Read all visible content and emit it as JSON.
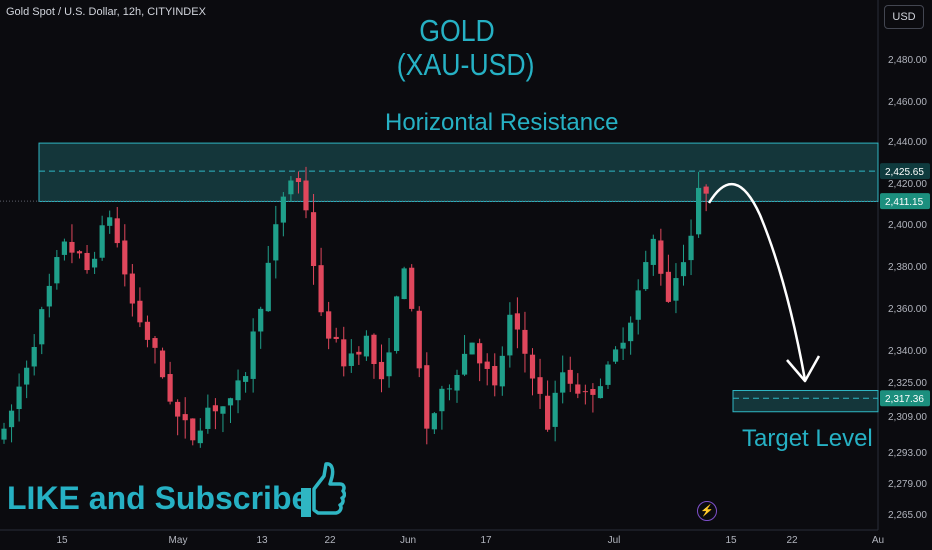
{
  "symbol_title": "Gold Spot / U.S. Dollar, 12h, CITYINDEX",
  "currency_button": "USD",
  "annotations": {
    "title_line1": "GOLD",
    "title_line2": "(XAU-USD)",
    "resistance_label": "Horizontal Resistance",
    "target_label": "Target Level",
    "cta_text": "LIKE and Subscribe"
  },
  "icons": {
    "thumbs_up": "thumbs-up-icon",
    "lightning": "lightning-icon"
  },
  "colors": {
    "background": "#0b0b0f",
    "bull": "#1f9f8a",
    "bear": "#e0475c",
    "zone_fill": "#1f6a6f",
    "zone_border": "#2fb6c3",
    "annotation_text": "#26b1c4",
    "arrow": "#ffffff",
    "price_tag": "#1c8f7e"
  },
  "chart_data": {
    "type": "candlestick",
    "title": "Gold Spot / U.S. Dollar, 12h, CITYINDEX",
    "y_ticks": [
      "2,480.00",
      "2,460.00",
      "2,440.00",
      "2,420.00",
      "2,400.00",
      "2,380.00",
      "2,360.00",
      "2,340.00",
      "2,325.00",
      "2,309.00",
      "2,293.00",
      "2,279.00",
      "2,265.00"
    ],
    "x_ticks": [
      "15",
      "May",
      "13",
      "22",
      "Jun",
      "17",
      "Jul",
      "15",
      "22",
      "Au"
    ],
    "price_tags": [
      {
        "label": "2,425.65",
        "value": 2425.65
      },
      {
        "label": "2,411.15",
        "value": 2411.15
      },
      {
        "label": "2,317.36",
        "value": 2317.36
      }
    ],
    "resistance_zone": [
      2411,
      2439
    ],
    "target_zone": [
      2311,
      2321
    ],
    "target_level": 2317.36,
    "last_price": 2411.15,
    "waypoints": [
      {
        "day": 0,
        "price": 2300
      },
      {
        "day": 4,
        "price": 2345
      },
      {
        "day": 8,
        "price": 2393
      },
      {
        "day": 11,
        "price": 2378
      },
      {
        "day": 14,
        "price": 2405
      },
      {
        "day": 17,
        "price": 2362
      },
      {
        "day": 20,
        "price": 2338
      },
      {
        "day": 23,
        "price": 2308
      },
      {
        "day": 25,
        "price": 2300
      },
      {
        "day": 27,
        "price": 2313
      },
      {
        "day": 30,
        "price": 2314
      },
      {
        "day": 32,
        "price": 2330
      },
      {
        "day": 35,
        "price": 2380
      },
      {
        "day": 37,
        "price": 2414
      },
      {
        "day": 38.5,
        "price": 2426
      },
      {
        "day": 40,
        "price": 2408
      },
      {
        "day": 42,
        "price": 2355
      },
      {
        "day": 45,
        "price": 2335
      },
      {
        "day": 48,
        "price": 2345
      },
      {
        "day": 50,
        "price": 2323
      },
      {
        "day": 53,
        "price": 2382
      },
      {
        "day": 56,
        "price": 2304
      },
      {
        "day": 59,
        "price": 2325
      },
      {
        "day": 62,
        "price": 2345
      },
      {
        "day": 65,
        "price": 2321
      },
      {
        "day": 67,
        "price": 2355
      },
      {
        "day": 70,
        "price": 2330
      },
      {
        "day": 72,
        "price": 2305
      },
      {
        "day": 74,
        "price": 2330
      },
      {
        "day": 77,
        "price": 2318
      },
      {
        "day": 80,
        "price": 2330
      },
      {
        "day": 83,
        "price": 2356
      },
      {
        "day": 86,
        "price": 2392
      },
      {
        "day": 88,
        "price": 2365
      },
      {
        "day": 91,
        "price": 2395
      },
      {
        "day": 92.5,
        "price": 2424
      },
      {
        "day": 93.5,
        "price": 2411.15
      }
    ]
  }
}
